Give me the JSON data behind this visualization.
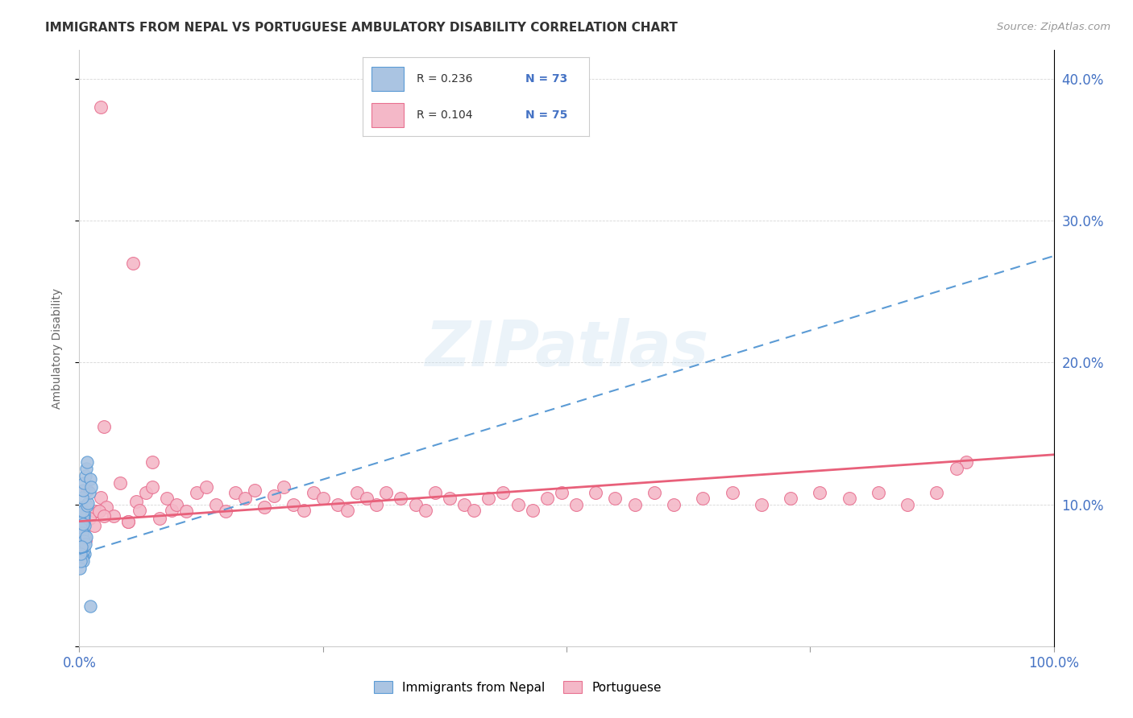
{
  "title": "IMMIGRANTS FROM NEPAL VS PORTUGUESE AMBULATORY DISABILITY CORRELATION CHART",
  "source": "Source: ZipAtlas.com",
  "ylabel": "Ambulatory Disability",
  "xlim": [
    0,
    1.0
  ],
  "ylim": [
    0,
    0.42
  ],
  "nepal_color": "#aac4e2",
  "nepal_edge_color": "#5b9bd5",
  "portuguese_color": "#f4b8c8",
  "portuguese_edge_color": "#e87090",
  "nepal_R": 0.236,
  "nepal_N": 73,
  "portuguese_R": 0.104,
  "portuguese_N": 75,
  "nepal_line_color": "#5b9bd5",
  "portuguese_line_color": "#e8607a",
  "nepal_trend_x0": 0.0,
  "nepal_trend_y0": 0.065,
  "nepal_trend_x1": 1.0,
  "nepal_trend_y1": 0.275,
  "port_trend_x0": 0.0,
  "port_trend_y0": 0.088,
  "port_trend_x1": 1.0,
  "port_trend_y1": 0.135,
  "legend_label_nepal": "Immigrants from Nepal",
  "legend_label_portuguese": "Portuguese",
  "watermark_text": "ZIPatlas",
  "background_color": "#ffffff",
  "nepal_x": [
    0.0008,
    0.001,
    0.0012,
    0.0015,
    0.002,
    0.002,
    0.0022,
    0.0025,
    0.003,
    0.003,
    0.0032,
    0.0035,
    0.004,
    0.004,
    0.0042,
    0.0045,
    0.005,
    0.005,
    0.0052,
    0.0055,
    0.001,
    0.0015,
    0.002,
    0.0025,
    0.003,
    0.0035,
    0.004,
    0.0045,
    0.005,
    0.0055,
    0.001,
    0.0012,
    0.0014,
    0.0016,
    0.002,
    0.0022,
    0.003,
    0.0032,
    0.004,
    0.0042,
    0.0008,
    0.001,
    0.0015,
    0.002,
    0.0025,
    0.003,
    0.0035,
    0.004,
    0.0045,
    0.005,
    0.001,
    0.002,
    0.003,
    0.004,
    0.005,
    0.006,
    0.007,
    0.008,
    0.009,
    0.01,
    0.0008,
    0.001,
    0.0015,
    0.002,
    0.003,
    0.004,
    0.005,
    0.006,
    0.007,
    0.008,
    0.011,
    0.012,
    0.011
  ],
  "nepal_y": [
    0.085,
    0.09,
    0.08,
    0.075,
    0.095,
    0.088,
    0.092,
    0.082,
    0.078,
    0.087,
    0.083,
    0.077,
    0.073,
    0.069,
    0.096,
    0.091,
    0.086,
    0.093,
    0.079,
    0.085,
    0.072,
    0.068,
    0.076,
    0.081,
    0.071,
    0.067,
    0.074,
    0.089,
    0.094,
    0.065,
    0.098,
    0.097,
    0.07,
    0.084,
    0.088,
    0.082,
    0.075,
    0.073,
    0.063,
    0.091,
    0.093,
    0.087,
    0.083,
    0.079,
    0.076,
    0.08,
    0.095,
    0.086,
    0.074,
    0.07,
    0.066,
    0.064,
    0.062,
    0.06,
    0.068,
    0.072,
    0.077,
    0.099,
    0.101,
    0.108,
    0.055,
    0.06,
    0.065,
    0.07,
    0.105,
    0.11,
    0.115,
    0.12,
    0.125,
    0.13,
    0.118,
    0.112,
    0.028
  ],
  "portuguese_x": [
    0.008,
    0.016,
    0.022,
    0.028,
    0.035,
    0.042,
    0.05,
    0.058,
    0.062,
    0.068,
    0.075,
    0.082,
    0.09,
    0.095,
    0.1,
    0.11,
    0.12,
    0.13,
    0.14,
    0.15,
    0.16,
    0.17,
    0.18,
    0.19,
    0.2,
    0.21,
    0.22,
    0.23,
    0.24,
    0.25,
    0.265,
    0.275,
    0.285,
    0.295,
    0.305,
    0.315,
    0.33,
    0.345,
    0.355,
    0.365,
    0.38,
    0.395,
    0.405,
    0.42,
    0.435,
    0.45,
    0.465,
    0.48,
    0.495,
    0.51,
    0.53,
    0.55,
    0.57,
    0.59,
    0.61,
    0.64,
    0.67,
    0.7,
    0.73,
    0.76,
    0.79,
    0.82,
    0.85,
    0.88,
    0.91,
    0.003,
    0.006,
    0.01,
    0.015,
    0.02,
    0.025,
    0.05,
    0.075,
    0.9,
    0.025
  ],
  "portuguese_y": [
    0.11,
    0.095,
    0.105,
    0.098,
    0.092,
    0.115,
    0.088,
    0.102,
    0.096,
    0.108,
    0.112,
    0.09,
    0.104,
    0.096,
    0.1,
    0.095,
    0.108,
    0.112,
    0.1,
    0.095,
    0.108,
    0.104,
    0.11,
    0.098,
    0.106,
    0.112,
    0.1,
    0.096,
    0.108,
    0.104,
    0.1,
    0.096,
    0.108,
    0.104,
    0.1,
    0.108,
    0.104,
    0.1,
    0.096,
    0.108,
    0.104,
    0.1,
    0.096,
    0.104,
    0.108,
    0.1,
    0.096,
    0.104,
    0.108,
    0.1,
    0.108,
    0.104,
    0.1,
    0.108,
    0.1,
    0.104,
    0.108,
    0.1,
    0.104,
    0.108,
    0.104,
    0.108,
    0.1,
    0.108,
    0.13,
    0.08,
    0.075,
    0.09,
    0.085,
    0.095,
    0.092,
    0.088,
    0.13,
    0.125,
    0.155
  ]
}
